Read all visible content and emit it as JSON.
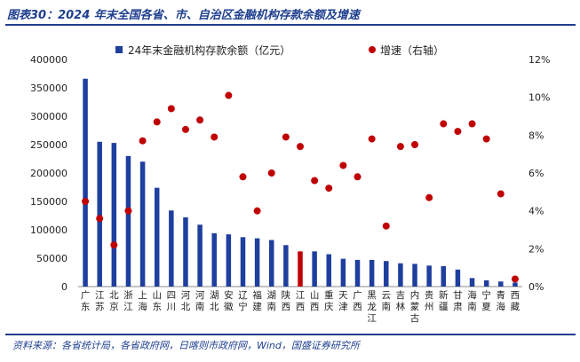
{
  "title": "图表30：2024 年末全国各省、市、自治区金融机构存款余额及增速",
  "source": "资料来源：各省统计局，各省政府网，日喀则市政府网，Wind，国盛证券研究所",
  "chart_data": {
    "type": "bar",
    "categories": [
      "广东",
      "江苏",
      "北京",
      "浙江",
      "上海",
      "山东",
      "四川",
      "河北",
      "河南",
      "湖北",
      "安徽",
      "辽宁",
      "福建",
      "湖南",
      "陕西",
      "江西",
      "山西",
      "重庆",
      "天津",
      "广西",
      "黑龙江",
      "云南",
      "吉林",
      "内蒙古",
      "贵州",
      "新疆",
      "甘肃",
      "海南",
      "宁夏",
      "青海",
      "西藏"
    ],
    "category_lines": [
      [
        "广",
        "东"
      ],
      [
        "江",
        "苏"
      ],
      [
        "北",
        "京"
      ],
      [
        "浙",
        "江"
      ],
      [
        "上",
        "海"
      ],
      [
        "山",
        "东"
      ],
      [
        "四",
        "川"
      ],
      [
        "河",
        "北"
      ],
      [
        "河",
        "南"
      ],
      [
        "湖",
        "北"
      ],
      [
        "安",
        "徽"
      ],
      [
        "辽",
        "宁"
      ],
      [
        "福",
        "建"
      ],
      [
        "湖",
        "南"
      ],
      [
        "陕",
        "西"
      ],
      [
        "江",
        "西"
      ],
      [
        "山",
        "西"
      ],
      [
        "重",
        "庆"
      ],
      [
        "天",
        "津"
      ],
      [
        "广",
        "西"
      ],
      [
        "黑",
        "龙",
        "江"
      ],
      [
        "云",
        "南"
      ],
      [
        "吉",
        "林"
      ],
      [
        "内",
        "蒙",
        "古"
      ],
      [
        "贵",
        "州"
      ],
      [
        "新",
        "疆"
      ],
      [
        "甘",
        "肃"
      ],
      [
        "海",
        "南"
      ],
      [
        "宁",
        "夏"
      ],
      [
        "青",
        "海"
      ],
      [
        "西",
        "藏"
      ]
    ],
    "series": [
      {
        "name": "24年末金融机构存款余额（亿元）",
        "type": "bar",
        "axis": "left",
        "color": "#1f3f9f",
        "values": [
          366000,
          255000,
          253000,
          230000,
          220000,
          174000,
          134000,
          122000,
          109000,
          94000,
          92000,
          87000,
          85000,
          82000,
          73000,
          62000,
          62000,
          57000,
          49000,
          47000,
          47000,
          45000,
          41000,
          40000,
          37000,
          36000,
          30000,
          15000,
          11000,
          9000,
          7000
        ]
      },
      {
        "name": "增速（右轴）",
        "type": "scatter",
        "axis": "right",
        "color": "#c00000",
        "values": [
          4.5,
          3.6,
          2.2,
          4.0,
          7.7,
          8.7,
          9.4,
          8.3,
          8.8,
          7.9,
          10.1,
          5.8,
          4.0,
          6.0,
          7.9,
          7.4,
          5.6,
          5.2,
          6.4,
          5.8,
          7.8,
          3.2,
          7.4,
          7.5,
          4.7,
          8.6,
          8.2,
          8.6,
          7.8,
          4.9,
          0.4
        ]
      }
    ],
    "highlight_index": 15,
    "highlight_color": "#c00000",
    "ylim_left": [
      0,
      400000
    ],
    "yticks_left": [
      0,
      50000,
      100000,
      150000,
      200000,
      250000,
      300000,
      350000,
      400000
    ],
    "ylim_right": [
      0,
      12
    ],
    "yticks_right": [
      "0%",
      "2%",
      "4%",
      "6%",
      "8%",
      "10%",
      "12%"
    ],
    "grid": false,
    "legend": "top"
  }
}
